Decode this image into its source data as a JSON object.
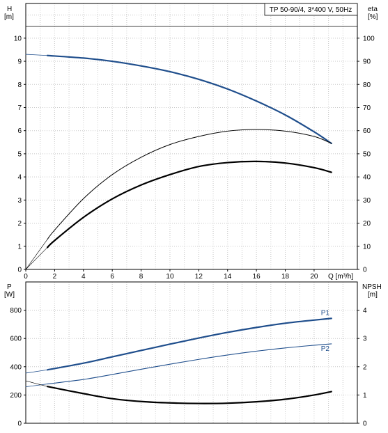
{
  "chart_data": [
    {
      "type": "line",
      "title": "TP 50-90/4, 3*400 V, 50Hz",
      "xlabel": "Q [m³/h]",
      "ylabel_left": [
        "H",
        "[m]"
      ],
      "ylabel_right": [
        "eta",
        "[%]"
      ],
      "xlim": [
        0,
        23
      ],
      "ylim_left": [
        0,
        11.5
      ],
      "ylim_right": [
        0,
        115
      ],
      "xticks": [
        "0",
        "2",
        "4",
        "6",
        "8",
        "10",
        "12",
        "14",
        "16",
        "18",
        "20"
      ],
      "yticks_left": [
        "0",
        "1",
        "2",
        "3",
        "4",
        "5",
        "6",
        "7",
        "8",
        "9",
        "10"
      ],
      "yticks_right": [
        "0",
        "10",
        "20",
        "30",
        "40",
        "50",
        "60",
        "70",
        "80",
        "90",
        "100"
      ],
      "grid": true,
      "series": [
        {
          "axis": "left",
          "color": "#1f4e8c",
          "width": 2.2,
          "x": [
            1.5,
            4,
            6,
            8,
            10,
            12,
            14,
            16,
            18,
            20,
            21.2
          ],
          "y": [
            9.25,
            9.14,
            9.0,
            8.8,
            8.55,
            8.22,
            7.8,
            7.28,
            6.68,
            5.95,
            5.45
          ]
        },
        {
          "axis": "left",
          "color": "#1f4e8c",
          "width": 0.8,
          "x": [
            0,
            1.5
          ],
          "y": [
            9.3,
            9.25
          ]
        },
        {
          "axis": "left",
          "color": "#000000",
          "width": 1,
          "x": [
            1.5,
            2,
            4,
            6,
            8,
            10,
            12,
            14,
            16,
            18,
            20,
            21.2
          ],
          "y": [
            1.3,
            1.7,
            3.06,
            4.1,
            4.85,
            5.4,
            5.75,
            5.98,
            6.05,
            5.98,
            5.75,
            5.45
          ]
        },
        {
          "axis": "left",
          "color": "#000000",
          "width": 0.6,
          "x": [
            0,
            1.5
          ],
          "y": [
            0,
            1.3
          ]
        },
        {
          "axis": "right",
          "color": "#000000",
          "width": 2.2,
          "x": [
            1.5,
            2,
            4,
            6,
            8,
            10,
            12,
            14,
            16,
            18,
            20,
            21.2
          ],
          "y": [
            9.5,
            12.5,
            22.5,
            30.5,
            36.5,
            41,
            44.5,
            46.2,
            46.7,
            46,
            44,
            42
          ]
        },
        {
          "axis": "right",
          "color": "#000000",
          "width": 0.6,
          "x": [
            0,
            1.5
          ],
          "y": [
            0,
            9.5
          ]
        }
      ]
    },
    {
      "type": "line",
      "xlabel": "",
      "ylabel_left": [
        "P",
        "[W]"
      ],
      "ylabel_right": [
        "NPSH",
        "[m]"
      ],
      "xlim": [
        0,
        23
      ],
      "ylim_left": [
        0,
        1000
      ],
      "ylim_right": [
        0,
        5
      ],
      "yticks_left": [
        "0",
        "200",
        "400",
        "600",
        "800"
      ],
      "yticks_right": [
        "0",
        "1",
        "2",
        "3",
        "4"
      ],
      "grid": true,
      "series": [
        {
          "name": "P1",
          "axis": "left",
          "color": "#1f4e8c",
          "width": 2.2,
          "x": [
            1.5,
            4,
            6,
            8,
            10,
            12,
            14,
            16,
            18,
            20,
            21.2
          ],
          "y": [
            378,
            425,
            470,
            515,
            560,
            603,
            643,
            678,
            708,
            730,
            742
          ]
        },
        {
          "axis": "left",
          "color": "#1f4e8c",
          "width": 0.8,
          "x": [
            0,
            1.5
          ],
          "y": [
            355,
            378
          ]
        },
        {
          "name": "P2",
          "axis": "left",
          "color": "#1f4e8c",
          "width": 1.1,
          "x": [
            1.5,
            4,
            6,
            8,
            10,
            12,
            14,
            16,
            18,
            20,
            21.2
          ],
          "y": [
            278,
            310,
            345,
            382,
            418,
            452,
            483,
            510,
            533,
            552,
            562
          ]
        },
        {
          "axis": "left",
          "color": "#1f4e8c",
          "width": 0.8,
          "x": [
            0,
            1.5
          ],
          "y": [
            258,
            278
          ]
        },
        {
          "axis": "right",
          "color": "#000000",
          "width": 2.2,
          "x": [
            1.5,
            4,
            6,
            8,
            10,
            12,
            14,
            16,
            18,
            20,
            21.2
          ],
          "y": [
            1.3,
            1.05,
            0.87,
            0.77,
            0.72,
            0.7,
            0.71,
            0.76,
            0.85,
            1.0,
            1.12
          ]
        },
        {
          "axis": "right",
          "color": "#000000",
          "width": 0.6,
          "x": [
            0,
            1.5
          ],
          "y": [
            1.5,
            1.3
          ]
        }
      ]
    }
  ]
}
